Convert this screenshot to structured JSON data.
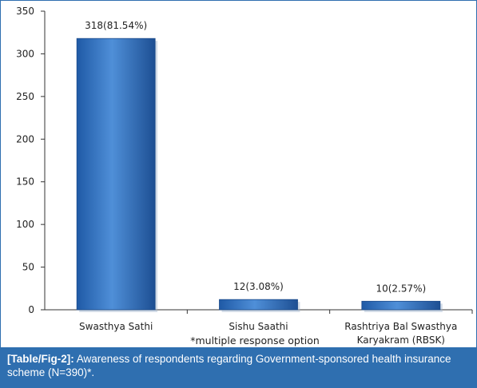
{
  "chart_data": {
    "type": "bar",
    "categories": [
      [
        "Swasthya Sathi"
      ],
      [
        "Sishu Saathi"
      ],
      [
        "Rashtriya Bal Swasthya",
        "Karyakram (RBSK)"
      ]
    ],
    "values": [
      318,
      12,
      10
    ],
    "data_labels": [
      "318(81.54%)",
      "12(3.08%)",
      "10(2.57%)"
    ],
    "ylim": [
      0,
      350
    ],
    "yticks": [
      0,
      50,
      100,
      150,
      200,
      250,
      300,
      350
    ],
    "grid": false,
    "bar_color": "#3b78c4",
    "note": "*multiple response option"
  },
  "caption": {
    "label": "[Table/Fig-2]:",
    "text": "Awareness of respondents regarding Government-sponsored health insurance scheme (N=390)*."
  }
}
